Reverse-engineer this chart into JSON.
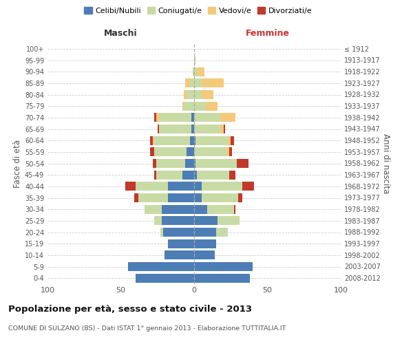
{
  "age_groups": [
    "0-4",
    "5-9",
    "10-14",
    "15-19",
    "20-24",
    "25-29",
    "30-34",
    "35-39",
    "40-44",
    "45-49",
    "50-54",
    "55-59",
    "60-64",
    "65-69",
    "70-74",
    "75-79",
    "80-84",
    "85-89",
    "90-94",
    "95-99",
    "100+"
  ],
  "birth_years": [
    "2008-2012",
    "2003-2007",
    "1998-2002",
    "1993-1997",
    "1988-1992",
    "1983-1987",
    "1978-1982",
    "1973-1977",
    "1968-1972",
    "1963-1967",
    "1958-1962",
    "1953-1957",
    "1948-1952",
    "1943-1947",
    "1938-1942",
    "1933-1937",
    "1928-1932",
    "1923-1927",
    "1918-1922",
    "1913-1917",
    "≤ 1912"
  ],
  "maschi": {
    "celibi": [
      40,
      45,
      20,
      18,
      21,
      22,
      22,
      18,
      18,
      8,
      6,
      5,
      3,
      2,
      2,
      0,
      0,
      0,
      0,
      0,
      0
    ],
    "coniugati": [
      0,
      0,
      0,
      0,
      2,
      5,
      12,
      20,
      22,
      18,
      20,
      22,
      24,
      22,
      22,
      7,
      5,
      3,
      1,
      0,
      0
    ],
    "vedovi": [
      0,
      0,
      0,
      0,
      0,
      0,
      0,
      0,
      0,
      0,
      0,
      0,
      1,
      0,
      2,
      1,
      2,
      3,
      0,
      0,
      0
    ],
    "divorziati": [
      0,
      0,
      0,
      0,
      0,
      0,
      0,
      3,
      7,
      1,
      2,
      3,
      2,
      1,
      1,
      0,
      0,
      0,
      0,
      0,
      0
    ]
  },
  "femmine": {
    "nubili": [
      38,
      40,
      14,
      15,
      15,
      16,
      9,
      5,
      5,
      2,
      1,
      0,
      1,
      0,
      0,
      0,
      0,
      0,
      0,
      0,
      0
    ],
    "coniugate": [
      0,
      0,
      0,
      0,
      8,
      15,
      18,
      25,
      28,
      22,
      28,
      22,
      22,
      18,
      18,
      8,
      5,
      5,
      2,
      1,
      0
    ],
    "vedove": [
      0,
      0,
      0,
      0,
      0,
      0,
      0,
      0,
      0,
      0,
      0,
      2,
      2,
      2,
      10,
      8,
      8,
      15,
      5,
      0,
      0
    ],
    "divorziate": [
      0,
      0,
      0,
      0,
      0,
      0,
      1,
      3,
      8,
      4,
      8,
      2,
      2,
      1,
      0,
      0,
      0,
      0,
      0,
      0,
      0
    ]
  },
  "colors": {
    "celibi": "#4d7db5",
    "coniugati": "#c8dba4",
    "vedovi": "#f5c97a",
    "divorziati": "#c0392b"
  },
  "xlim": 100,
  "title": "Popolazione per età, sesso e stato civile - 2013",
  "subtitle": "COMUNE DI SULZANO (BS) - Dati ISTAT 1° gennaio 2013 - Elaborazione TUTTITALIA.IT",
  "ylabel_left": "Fasce di età",
  "ylabel_right": "Anni di nascita",
  "xlabel_left": "Maschi",
  "xlabel_right": "Femmine"
}
